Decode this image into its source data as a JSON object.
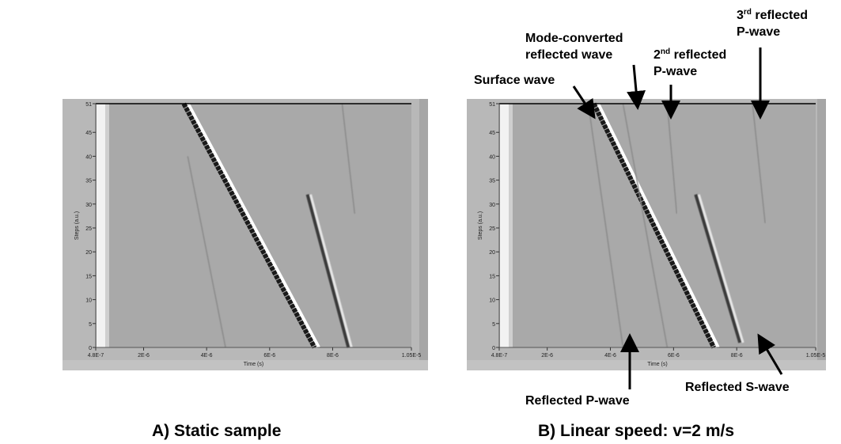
{
  "chart_data": [
    {
      "type": "heatmap",
      "panel_label": "A) Static sample",
      "xlabel": "Time (s)",
      "ylabel": "Steps (a.u.)",
      "xlim": [
        4.8e-07,
        1.05e-05
      ],
      "ylim": [
        0,
        51
      ],
      "x_tick_labels": [
        "4.8E-7",
        "2E-6",
        "4E-6",
        "6E-6",
        "8E-6",
        "1.05E-5"
      ],
      "x_tick_values": [
        4.8e-07,
        2e-06,
        4e-06,
        6e-06,
        8e-06,
        1.05e-05
      ],
      "y_tick_labels": [
        "0",
        "5",
        "10",
        "15",
        "20",
        "25",
        "30",
        "35",
        "40",
        "45",
        "51"
      ],
      "y_tick_values": [
        0,
        5,
        10,
        15,
        20,
        25,
        30,
        35,
        40,
        45,
        51
      ],
      "features": [
        {
          "name": "main-pulse",
          "x_start": 3.3e-06,
          "y_start": 51,
          "x_end": 7.45e-06,
          "y_end": 0
        },
        {
          "name": "faint-line",
          "x_start": 3.4e-06,
          "y_start": 40,
          "x_end": 4.6e-06,
          "y_end": 0
        },
        {
          "name": "reflected-echo",
          "x_start": 7.2e-06,
          "y_start": 32,
          "x_end": 8.5e-06,
          "y_end": 0
        },
        {
          "name": "faint-line-2",
          "x_start": 8.3e-06,
          "y_start": 51,
          "x_end": 8.7e-06,
          "y_end": 28
        }
      ],
      "annotations": []
    },
    {
      "type": "heatmap",
      "panel_label": "B) Linear speed: v=2 m/s",
      "xlabel": "Time (s)",
      "ylabel": "Steps (a.u.)",
      "xlim": [
        4.8e-07,
        1.05e-05
      ],
      "ylim": [
        0,
        51
      ],
      "x_tick_labels": [
        "4.8E-7",
        "2E-6",
        "4E-6",
        "6E-6",
        "8E-6",
        "1.05E-5"
      ],
      "x_tick_values": [
        4.8e-07,
        2e-06,
        4e-06,
        6e-06,
        8e-06,
        1.05e-05
      ],
      "y_tick_labels": [
        "0",
        "5",
        "10",
        "15",
        "20",
        "25",
        "30",
        "35",
        "40",
        "45",
        "51"
      ],
      "y_tick_values": [
        0,
        5,
        10,
        15,
        20,
        25,
        30,
        35,
        40,
        45,
        51
      ],
      "features": [
        {
          "name": "main-pulse",
          "x_start": 3.5e-06,
          "y_start": 51,
          "x_end": 7.3e-06,
          "y_end": 0
        },
        {
          "name": "reflected-p-wave",
          "x_start": 3.3e-06,
          "y_start": 51,
          "x_end": 4.4e-06,
          "y_end": 0
        },
        {
          "name": "mode-converted-wave",
          "x_start": 4.4e-06,
          "y_start": 51,
          "x_end": 5.8e-06,
          "y_end": 0
        },
        {
          "name": "second-p-wave",
          "x_start": 5.8e-06,
          "y_start": 51,
          "x_end": 6.1e-06,
          "y_end": 28
        },
        {
          "name": "reflected-s-wave",
          "x_start": 6.7e-06,
          "y_start": 32,
          "x_end": 8.1e-06,
          "y_end": 1
        },
        {
          "name": "third-p-wave",
          "x_start": 8.5e-06,
          "y_start": 51,
          "x_end": 8.9e-06,
          "y_end": 26
        }
      ],
      "annotations": [
        {
          "key": "surface",
          "text": "Surface wave"
        },
        {
          "key": "mode_converted",
          "text_line1": "Mode-converted",
          "text_line2": "reflected wave"
        },
        {
          "key": "second",
          "ordinal": "2",
          "suffix": "nd",
          "text_line1": " reflected",
          "text_line2": "P-wave"
        },
        {
          "key": "third",
          "ordinal": "3",
          "suffix": "rd",
          "text_line1": " reflected",
          "text_line2": "P-wave"
        },
        {
          "key": "reflected_p",
          "text": "Reflected P-wave"
        },
        {
          "key": "reflected_s",
          "text": "Reflected S-wave"
        }
      ]
    }
  ]
}
